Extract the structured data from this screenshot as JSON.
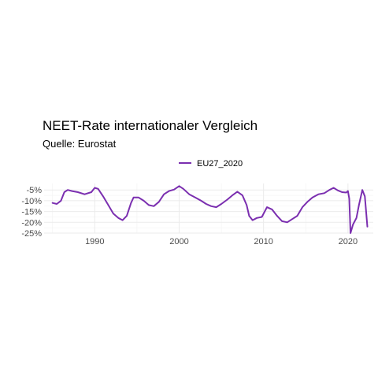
{
  "chart_data": {
    "type": "line",
    "title": "NEET-Rate internationaler Vergleich",
    "subtitle": "Quelle: Eurostat",
    "xlabel": "",
    "ylabel": "",
    "legend_position": "top",
    "grid": true,
    "xlim": [
      1984,
      2023
    ],
    "ylim": [
      -25,
      -2
    ],
    "x_ticks": [
      1990,
      2000,
      2010,
      2020
    ],
    "x_tick_labels": [
      "1990",
      "2000",
      "2010",
      "2020"
    ],
    "y_ticks": [
      -5,
      -10,
      -15,
      -20,
      -25
    ],
    "y_tick_labels": [
      "-5%",
      "-10%",
      "-15%",
      "-20%",
      "-25%"
    ],
    "series": [
      {
        "name": "EU27_2020",
        "color": "#7b2fb0",
        "x": [
          1985.0,
          1985.5,
          1986.0,
          1986.4,
          1986.8,
          1987.3,
          1988.0,
          1988.8,
          1989.6,
          1990.0,
          1990.4,
          1991.0,
          1991.6,
          1992.2,
          1992.8,
          1993.3,
          1993.8,
          1994.3,
          1994.6,
          1995.2,
          1995.8,
          1996.4,
          1997.0,
          1997.6,
          1998.2,
          1998.8,
          1999.4,
          2000.0,
          2000.5,
          2001.2,
          2001.9,
          2002.6,
          2003.2,
          2003.8,
          2004.4,
          2005.0,
          2005.7,
          2006.3,
          2006.9,
          2007.5,
          2008.0,
          2008.3,
          2008.7,
          2009.2,
          2009.8,
          2010.4,
          2011.0,
          2011.6,
          2012.2,
          2012.8,
          2013.4,
          2014.0,
          2014.6,
          2015.2,
          2015.8,
          2016.5,
          2017.2,
          2017.8,
          2018.3,
          2018.8,
          2019.3,
          2019.8,
          2020.0,
          2020.15,
          2020.3,
          2020.6,
          2021.0,
          2021.3,
          2021.7,
          2022.0,
          2022.3
        ],
        "values": [
          -11,
          -11.5,
          -10,
          -6,
          -5,
          -5.5,
          -6,
          -7,
          -6,
          -4,
          -4.5,
          -8,
          -12,
          -16,
          -18,
          -19,
          -17,
          -11,
          -8.5,
          -8.5,
          -10,
          -12,
          -12.5,
          -10.5,
          -7,
          -5.5,
          -4.8,
          -3.2,
          -4.5,
          -7,
          -8.5,
          -10,
          -11.5,
          -12.5,
          -13,
          -11.5,
          -9.5,
          -7.5,
          -5.8,
          -7.5,
          -12,
          -17,
          -19,
          -18,
          -17.5,
          -13,
          -14,
          -17,
          -19.5,
          -20,
          -18.5,
          -17,
          -13,
          -10.5,
          -8.5,
          -7,
          -6.5,
          -5,
          -4,
          -5.2,
          -6,
          -6.2,
          -5.5,
          -9,
          -25,
          -21,
          -18,
          -12,
          -5,
          -8,
          -22
        ]
      }
    ]
  }
}
